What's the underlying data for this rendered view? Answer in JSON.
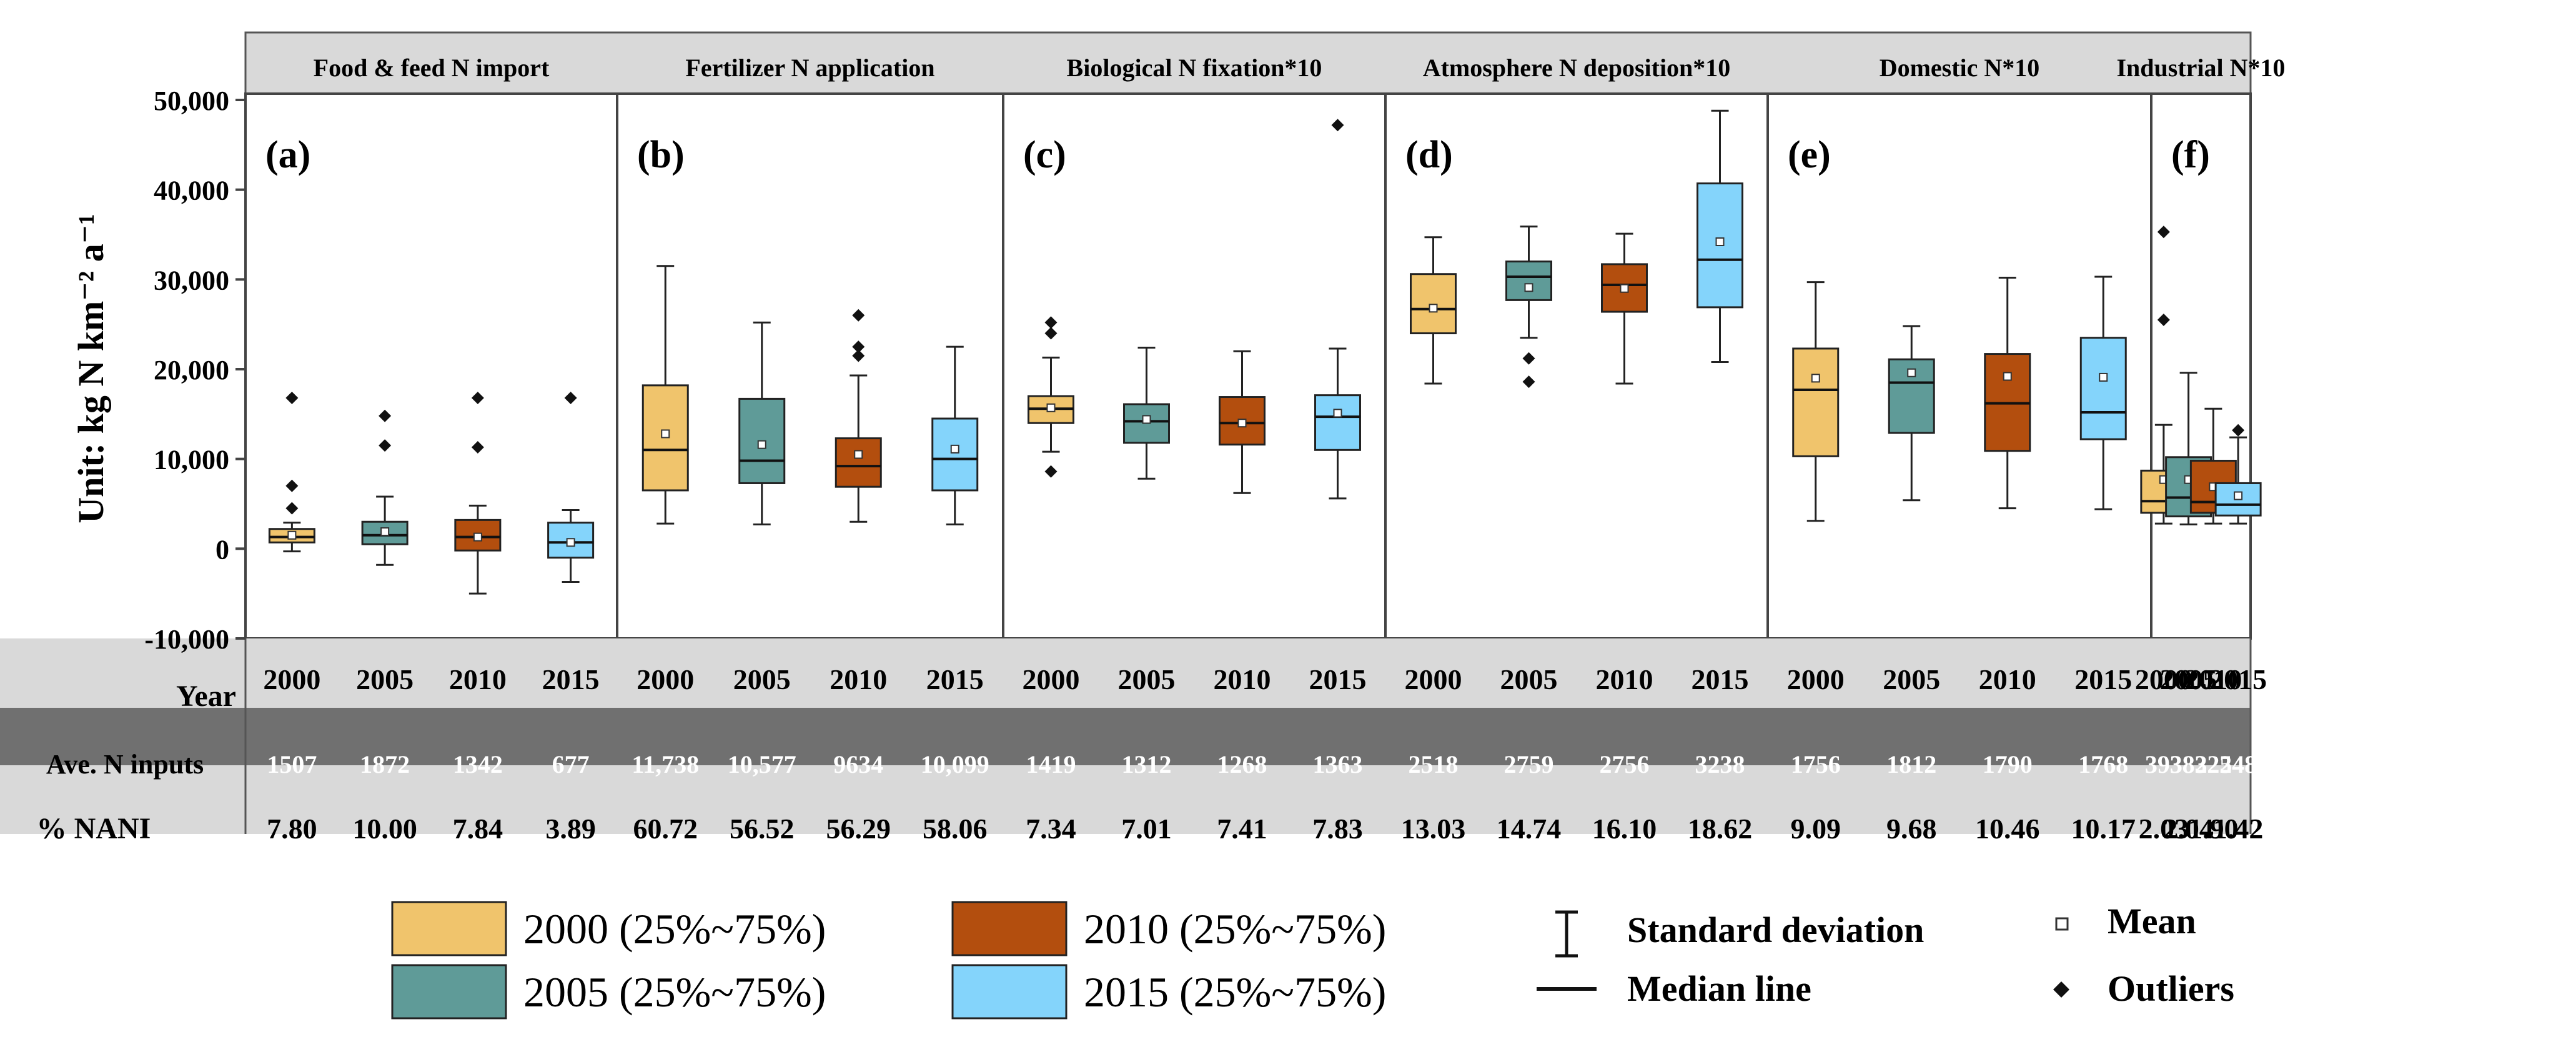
{
  "chart_data": {
    "type": "box",
    "y_axis": {
      "label": "Unit: kg N km⁻² a⁻¹",
      "ylim": [
        -10000,
        50000
      ],
      "ticks": [
        -10000,
        0,
        10000,
        20000,
        30000,
        40000,
        50000
      ],
      "tick_labels": [
        "-10,000",
        "0",
        "10,000",
        "20,000",
        "30,000",
        "40,000",
        "50,000"
      ]
    },
    "years": [
      "2000",
      "2005",
      "2010",
      "2015"
    ],
    "year_colors": [
      "#f0c46c",
      "#5f9b98",
      "#b34e0e",
      "#84d4fb"
    ],
    "row_labels": {
      "year": "Year",
      "inputs": "Ave. N inputs",
      "nani": "% NANI"
    },
    "panels": [
      {
        "title": "Food & feed N import",
        "letter": "(a)",
        "inputs": [
          "1507",
          "1872",
          "1342",
          "677"
        ],
        "nani": [
          "7.80",
          "10.00",
          "7.84",
          "3.89"
        ],
        "boxes": [
          {
            "lo": -300,
            "q1": 700,
            "med": 1300,
            "q3": 2200,
            "hi": 2900,
            "mean": 1500,
            "outliers": [
              4500,
              7000,
              16800
            ]
          },
          {
            "lo": -1800,
            "q1": 500,
            "med": 1500,
            "q3": 3000,
            "hi": 5800,
            "mean": 1900,
            "outliers": [
              11500,
              14800
            ]
          },
          {
            "lo": -5000,
            "q1": -200,
            "med": 1300,
            "q3": 3200,
            "hi": 4800,
            "mean": 1300,
            "outliers": [
              11300,
              16800
            ]
          },
          {
            "lo": -3700,
            "q1": -1000,
            "med": 700,
            "q3": 2900,
            "hi": 4300,
            "mean": 700,
            "outliers": [
              16800
            ]
          }
        ]
      },
      {
        "title": "Fertilizer N application",
        "letter": "(b)",
        "inputs": [
          "11,738",
          "10,577",
          "9634",
          "10,099"
        ],
        "nani": [
          "60.72",
          "56.52",
          "56.29",
          "58.06"
        ],
        "boxes": [
          {
            "lo": 2800,
            "q1": 6500,
            "med": 11000,
            "q3": 18200,
            "hi": 31500,
            "mean": 12800,
            "outliers": []
          },
          {
            "lo": 2700,
            "q1": 7300,
            "med": 9800,
            "q3": 16700,
            "hi": 25200,
            "mean": 11600,
            "outliers": []
          },
          {
            "lo": 3000,
            "q1": 6900,
            "med": 9200,
            "q3": 12300,
            "hi": 19300,
            "mean": 10500,
            "outliers": [
              21500,
              22500,
              26000
            ]
          },
          {
            "lo": 2700,
            "q1": 6500,
            "med": 10000,
            "q3": 14500,
            "hi": 22500,
            "mean": 11100,
            "outliers": []
          }
        ]
      },
      {
        "title": "Biological  N fixation*10",
        "letter": "(c)",
        "inputs": [
          "1419",
          "1312",
          "1268",
          "1363"
        ],
        "nani": [
          "7.34",
          "7.01",
          "7.41",
          "7.83"
        ],
        "boxes": [
          {
            "lo": 10800,
            "q1": 14000,
            "med": 15600,
            "q3": 17000,
            "hi": 21300,
            "mean": 15700,
            "outliers": [
              8600,
              24000,
              25200
            ]
          },
          {
            "lo": 7800,
            "q1": 11800,
            "med": 14200,
            "q3": 16100,
            "hi": 22400,
            "mean": 14400,
            "outliers": []
          },
          {
            "lo": 6200,
            "q1": 11600,
            "med": 14000,
            "q3": 16900,
            "hi": 22000,
            "mean": 14000,
            "outliers": []
          },
          {
            "lo": 5600,
            "q1": 11000,
            "med": 14700,
            "q3": 17100,
            "hi": 22300,
            "mean": 15100,
            "outliers": [
              47200
            ]
          }
        ]
      },
      {
        "title": "Atmosphere N deposition*10",
        "letter": "(d)",
        "inputs": [
          "2518",
          "2759",
          "2756",
          "3238"
        ],
        "nani": [
          "13.03",
          "14.74",
          "16.10",
          "18.62"
        ],
        "boxes": [
          {
            "lo": 18400,
            "q1": 24000,
            "med": 26700,
            "q3": 30600,
            "hi": 34700,
            "mean": 26800,
            "outliers": []
          },
          {
            "lo": 23500,
            "q1": 27700,
            "med": 30300,
            "q3": 32000,
            "hi": 35900,
            "mean": 29100,
            "outliers": [
              18600,
              21200
            ]
          },
          {
            "lo": 18400,
            "q1": 26400,
            "med": 29400,
            "q3": 31700,
            "hi": 35100,
            "mean": 29000,
            "outliers": []
          },
          {
            "lo": 20800,
            "q1": 26900,
            "med": 32200,
            "q3": 40700,
            "hi": 48800,
            "mean": 34200,
            "outliers": []
          }
        ]
      },
      {
        "title": "Domestic N*10",
        "letter": "(e)",
        "inputs": [
          "1756",
          "1812",
          "1790",
          "1768"
        ],
        "nani": [
          "9.09",
          "9.68",
          "10.46",
          "10.17"
        ],
        "boxes": [
          {
            "lo": 3100,
            "q1": 10300,
            "med": 17700,
            "q3": 22300,
            "hi": 29700,
            "mean": 19000,
            "outliers": []
          },
          {
            "lo": 5400,
            "q1": 12900,
            "med": 18500,
            "q3": 21100,
            "hi": 24800,
            "mean": 19600,
            "outliers": []
          },
          {
            "lo": 4500,
            "q1": 10900,
            "med": 16200,
            "q3": 21700,
            "hi": 30200,
            "mean": 19200,
            "outliers": []
          },
          {
            "lo": 4400,
            "q1": 12200,
            "med": 15200,
            "q3": 23500,
            "hi": 30300,
            "mean": 19100,
            "outliers": []
          }
        ]
      },
      {
        "title": "Industrial N*10",
        "letter": "(f)",
        "inputs": [
          "393",
          "382",
          "325",
          "248"
        ],
        "nani": [
          "2.03",
          "2.04",
          "1.90",
          "1.42"
        ],
        "boxes": [
          {
            "lo": 2800,
            "q1": 4000,
            "med": 5300,
            "q3": 8700,
            "hi": 13800,
            "mean": 7700,
            "outliers": [
              25500,
              35300
            ]
          },
          {
            "lo": 2700,
            "q1": 3600,
            "med": 5700,
            "q3": 10200,
            "hi": 19600,
            "mean": 7700,
            "outliers": []
          },
          {
            "lo": 2800,
            "q1": 4000,
            "med": 5200,
            "q3": 9800,
            "hi": 15600,
            "mean": 6900,
            "outliers": []
          },
          {
            "lo": 2800,
            "q1": 3700,
            "med": 4900,
            "q3": 7300,
            "hi": 12400,
            "mean": 5900,
            "outliers": [
              13200
            ]
          }
        ]
      }
    ],
    "legend": {
      "years": [
        "2000 (25%~75%)",
        "2005 (25%~75%)",
        "2010 (25%~75%)",
        "2015 (25%~75%)"
      ],
      "sd": "Standard deviation",
      "median": "Median line",
      "mean": "Mean",
      "outliers": "Outliers"
    }
  }
}
